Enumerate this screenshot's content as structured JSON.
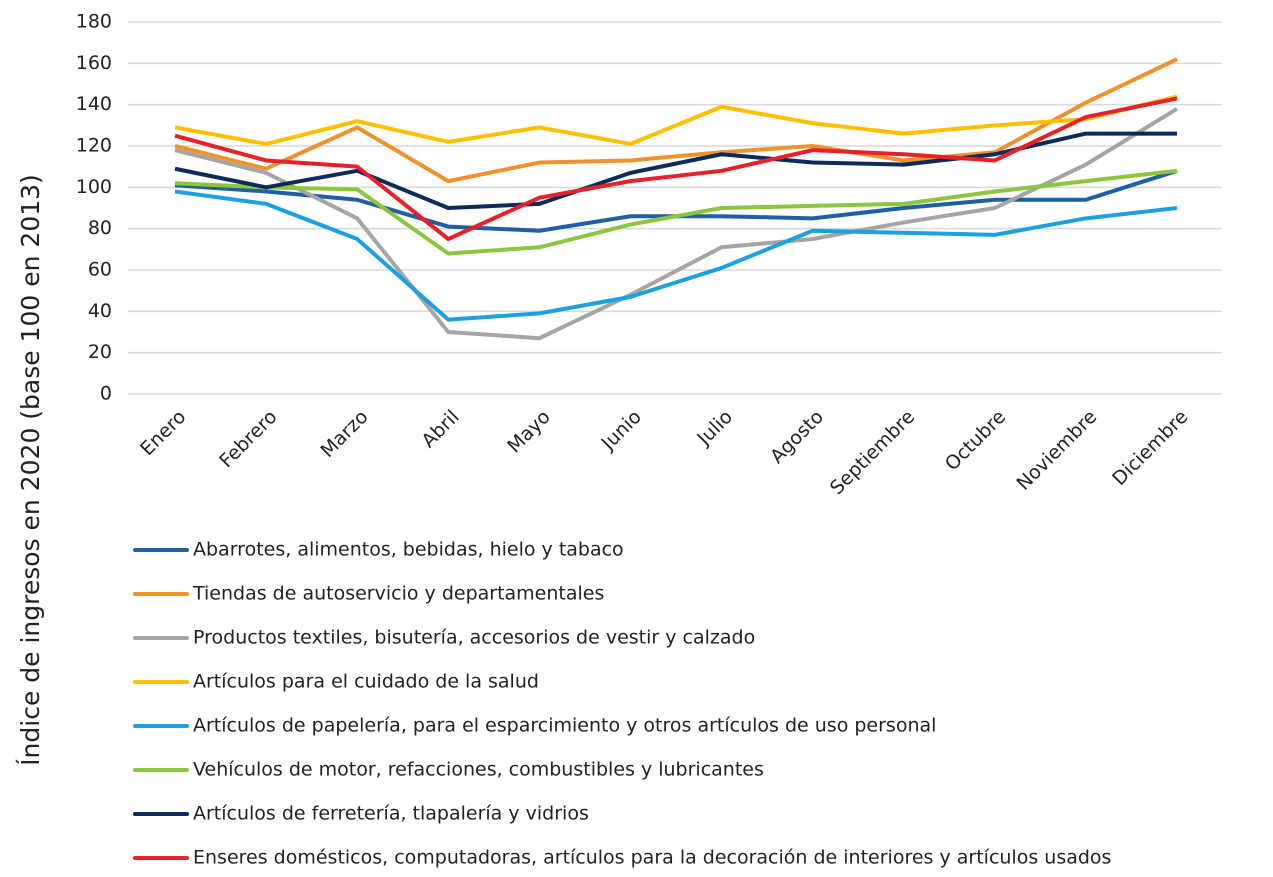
{
  "chart_data": {
    "type": "line",
    "y_label": "Índice de ingresos  en 2020 (base 100 en 2013)",
    "categories": [
      "Enero",
      "Febrero",
      "Marzo",
      "Abril",
      "Mayo",
      "Junio",
      "Julio",
      "Agosto",
      "Septiembre",
      "Octubre",
      "Noviembre",
      "Diciembre"
    ],
    "ylim": [
      0,
      180
    ],
    "yticks": [
      0,
      20,
      40,
      60,
      80,
      100,
      120,
      140,
      160,
      180
    ],
    "grid": true,
    "legend": "bottom",
    "series": [
      {
        "name": "Abarrotes, alimentos, bebidas, hielo y tabaco",
        "color": "#1f5fa6",
        "values": [
          101,
          98,
          94,
          81,
          79,
          86,
          86,
          85,
          90,
          94,
          94,
          108
        ]
      },
      {
        "name": "Tiendas de autoservicio y departamentales",
        "color": "#f0912b",
        "values": [
          120,
          109,
          129,
          103,
          112,
          113,
          117,
          120,
          113,
          117,
          141,
          162
        ]
      },
      {
        "name": "Productos textiles, bisutería, accesorios de vestir y calzado",
        "color": "#a5a5a5",
        "values": [
          118,
          107,
          85,
          30,
          27,
          48,
          71,
          75,
          83,
          90,
          111,
          138
        ]
      },
      {
        "name": "Artículos para el cuidado de la salud",
        "color": "#ffc000",
        "values": [
          129,
          121,
          132,
          122,
          129,
          121,
          139,
          131,
          126,
          130,
          133,
          144
        ]
      },
      {
        "name": "Artículos de papelería, para el esparcimiento y otros artículos de uso personal",
        "color": "#1ba1e2",
        "values": [
          98,
          92,
          75,
          36,
          39,
          47,
          61,
          79,
          78,
          77,
          85,
          90
        ]
      },
      {
        "name": "Vehículos de motor, refacciones, combustibles y lubricantes",
        "color": "#8cc63f",
        "values": [
          102,
          100,
          99,
          68,
          71,
          82,
          90,
          91,
          92,
          98,
          103,
          108
        ]
      },
      {
        "name": "Artículos de ferretería, tlapalería y vidrios",
        "color": "#0c2b5a",
        "values": [
          109,
          100,
          108,
          90,
          92,
          107,
          116,
          112,
          111,
          116,
          126,
          126
        ]
      },
      {
        "name": "Enseres domésticos, computadoras, artículos para la decoración de interiores y artículos usados",
        "color": "#e8202a",
        "values": [
          125,
          113,
          110,
          75,
          95,
          103,
          108,
          118,
          116,
          113,
          134,
          143
        ]
      }
    ]
  }
}
